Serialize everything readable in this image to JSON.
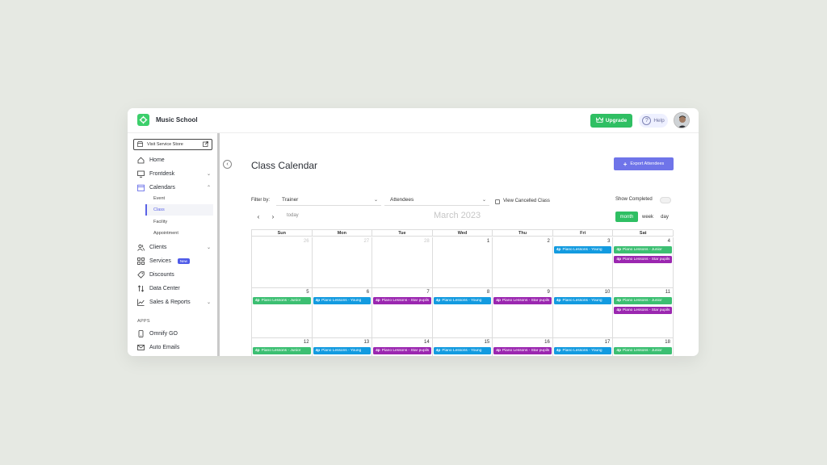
{
  "app": {
    "title": "Music School"
  },
  "topbar": {
    "upgrade_label": "Upgrade",
    "help_label": "Help",
    "help_glyph": "?"
  },
  "sidebar": {
    "visit_store_label": "Visit Service Store",
    "items": [
      {
        "label": "Home",
        "icon": "home-icon"
      },
      {
        "label": "Frontdesk",
        "icon": "monitor-icon"
      },
      {
        "label": "Calendars",
        "icon": "calendar-icon"
      },
      {
        "label": "Clients",
        "icon": "users-icon"
      },
      {
        "label": "Services",
        "icon": "grid-icon",
        "badge": "New"
      },
      {
        "label": "Discounts",
        "icon": "tag-icon"
      },
      {
        "label": "Data Center",
        "icon": "sort-icon"
      },
      {
        "label": "Sales & Reports",
        "icon": "chart-icon"
      }
    ],
    "calendar_subitems": [
      "Event",
      "Class",
      "Facility",
      "Appointment"
    ],
    "apps_label": "APPS",
    "apps": [
      {
        "label": "Omnify GO",
        "icon": "phone-icon"
      },
      {
        "label": "Auto Emails",
        "icon": "mail-icon"
      }
    ]
  },
  "main": {
    "title": "Class Calendar",
    "export_label": "Export Attendees",
    "filter_label": "Filter by:",
    "trainer_select": "Trainer",
    "attendees_select": "Attendees",
    "view_cancelled_label": "View Cancelled Class",
    "show_completed_label": "Show Completed",
    "today_label": "today",
    "month_title": "March 2023",
    "views": [
      "month",
      "week",
      "day"
    ],
    "active_view": "month"
  },
  "calendar": {
    "days_of_week": [
      "Sun",
      "Mon",
      "Tue",
      "Wed",
      "Thu",
      "Fri",
      "Sat"
    ],
    "weeks": [
      [
        "26",
        "27",
        "28",
        "1",
        "2",
        "3",
        "4"
      ],
      [
        "5",
        "6",
        "7",
        "8",
        "9",
        "10",
        "11"
      ],
      [
        "12",
        "13",
        "14",
        "15",
        "16",
        "17",
        "18"
      ]
    ],
    "muted_days": [
      "26",
      "27",
      "28"
    ],
    "colors": {
      "green": "#3cbf72",
      "blue": "#139be0",
      "purple": "#9b27b0"
    },
    "events": [
      {
        "week": 0,
        "day": 5,
        "slot": 0,
        "time": "4p",
        "title": "Piano Lessons - Young",
        "color": "blue"
      },
      {
        "week": 0,
        "day": 6,
        "slot": 0,
        "time": "4p",
        "title": "Piano Lessons - Junior",
        "color": "green"
      },
      {
        "week": 0,
        "day": 6,
        "slot": 1,
        "time": "4p",
        "title": "Piano Lessons - Star pupils",
        "color": "purple"
      },
      {
        "week": 1,
        "day": 0,
        "slot": 0,
        "time": "4p",
        "title": "Piano Lessons - Junior",
        "color": "green"
      },
      {
        "week": 1,
        "day": 1,
        "slot": 0,
        "time": "4p",
        "title": "Piano Lessons - Young",
        "color": "blue"
      },
      {
        "week": 1,
        "day": 2,
        "slot": 0,
        "time": "4p",
        "title": "Piano Lessons - Star pupils",
        "color": "purple"
      },
      {
        "week": 1,
        "day": 3,
        "slot": 0,
        "time": "4p",
        "title": "Piano Lessons - Young",
        "color": "blue"
      },
      {
        "week": 1,
        "day": 4,
        "slot": 0,
        "time": "4p",
        "title": "Piano Lessons - Star pupils",
        "color": "purple"
      },
      {
        "week": 1,
        "day": 5,
        "slot": 0,
        "time": "4p",
        "title": "Piano Lessons - Young",
        "color": "blue"
      },
      {
        "week": 1,
        "day": 6,
        "slot": 0,
        "time": "4p",
        "title": "Piano Lessons - Junior",
        "color": "green"
      },
      {
        "week": 1,
        "day": 6,
        "slot": 1,
        "time": "4p",
        "title": "Piano Lessons - Star pupils",
        "color": "purple"
      },
      {
        "week": 2,
        "day": 0,
        "slot": 0,
        "time": "4p",
        "title": "Piano Lessons - Junior",
        "color": "green"
      },
      {
        "week": 2,
        "day": 1,
        "slot": 0,
        "time": "4p",
        "title": "Piano Lessons - Young",
        "color": "blue"
      },
      {
        "week": 2,
        "day": 2,
        "slot": 0,
        "time": "4p",
        "title": "Piano Lessons - Star pupils",
        "color": "purple"
      },
      {
        "week": 2,
        "day": 3,
        "slot": 0,
        "time": "4p",
        "title": "Piano Lessons - Young",
        "color": "blue"
      },
      {
        "week": 2,
        "day": 4,
        "slot": 0,
        "time": "4p",
        "title": "Piano Lessons - Star pupils",
        "color": "purple"
      },
      {
        "week": 2,
        "day": 5,
        "slot": 0,
        "time": "4p",
        "title": "Piano Lessons - Young",
        "color": "blue"
      },
      {
        "week": 2,
        "day": 6,
        "slot": 0,
        "time": "4p",
        "title": "Piano Lessons - Junior",
        "color": "green"
      }
    ]
  }
}
